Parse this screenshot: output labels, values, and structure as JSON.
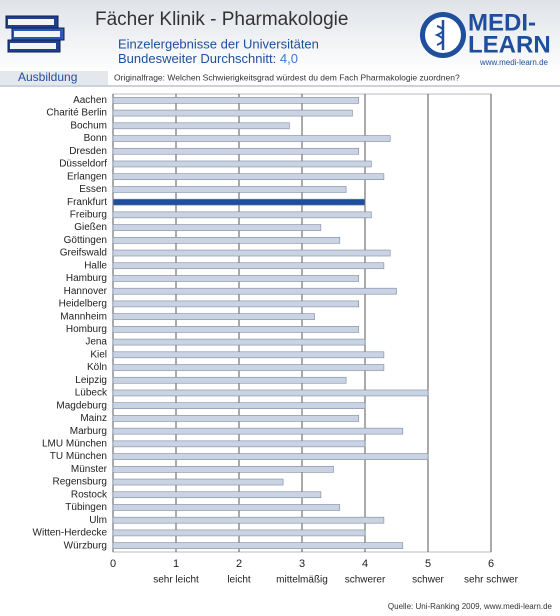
{
  "chart_data": {
    "type": "barh",
    "title": "Fächer Klinik - Pharmakologie",
    "subtitle": "Einzelergebnisse der Universitäten",
    "average_text": "Bundesweiter Durchschnitt:",
    "average": {
      "value": 4.0,
      "label": "4,0"
    },
    "section": "Ausbildung",
    "question": "Originalfrage: Welchen Schwierigkeitsgrad würdest du dem Fach Pharmakologie zuordnen?",
    "logo_top": "MEDI-",
    "logo_bottom": "LEARN",
    "logo_url": "www.medi-learn.de",
    "source": "Quelle: Uni-Ranking 2009, www.medi-learn.de",
    "categories": [
      "Aachen",
      "Charité Berlin",
      "Bochum",
      "Bonn",
      "Dresden",
      "Düsseldorf",
      "Erlangen",
      "Essen",
      "Frankfurt",
      "Freiburg",
      "Gießen",
      "Göttingen",
      "Greifswald",
      "Halle",
      "Hamburg",
      "Hannover",
      "Heidelberg",
      "Mannheim",
      "Homburg",
      "Jena",
      "Kiel",
      "Köln",
      "Leipzig",
      "Lübeck",
      "Magdeburg",
      "Mainz",
      "Marburg",
      "LMU München",
      "TU München",
      "Münster",
      "Regensburg",
      "Rostock",
      "Tübingen",
      "Ulm",
      "Witten-Herdecke",
      "Würzburg"
    ],
    "values": [
      3.9,
      3.8,
      2.8,
      4.4,
      3.9,
      4.1,
      4.3,
      3.7,
      4.0,
      4.1,
      3.3,
      3.6,
      4.4,
      4.3,
      3.9,
      4.5,
      3.9,
      3.2,
      3.9,
      4.0,
      4.3,
      4.3,
      3.7,
      5.0,
      4.0,
      3.9,
      4.6,
      4.0,
      5.0,
      3.5,
      2.7,
      3.3,
      3.6,
      4.3,
      4.0,
      4.6
    ],
    "colors": [
      "#c9d3e3",
      "#c9d3e3",
      "#c9d3e3",
      "#c9d3e3",
      "#c9d3e3",
      "#c9d3e3",
      "#c9d3e3",
      "#c9d3e3",
      "#1f4e9c",
      "#c9d3e3",
      "#c9d3e3",
      "#c9d3e3",
      "#c9d3e3",
      "#c9d3e3",
      "#c9d3e3",
      "#c9d3e3",
      "#c9d3e3",
      "#c9d3e3",
      "#c9d3e3",
      "#c9d3e3",
      "#c9d3e3",
      "#c9d3e3",
      "#c9d3e3",
      "#c9d3e3",
      "#c9d3e3",
      "#c9d3e3",
      "#c9d3e3",
      "#c9d3e3",
      "#c9d3e3",
      "#c9d3e3",
      "#c9d3e3",
      "#c9d3e3",
      "#c9d3e3",
      "#c9d3e3",
      "#c9d3e3",
      "#c9d3e3"
    ],
    "xlim": [
      0,
      6
    ],
    "xticks": [
      0,
      1,
      2,
      3,
      4,
      5,
      6
    ],
    "scale_labels": [
      {
        "value": 1,
        "label": "sehr leicht"
      },
      {
        "value": 2,
        "label": "leicht"
      },
      {
        "value": 3,
        "label": "mittelmäßig"
      },
      {
        "value": 4,
        "label": "schwerer"
      },
      {
        "value": 5,
        "label": "schwer"
      },
      {
        "value": 6,
        "label": "sehr schwer"
      }
    ],
    "grid": true
  }
}
